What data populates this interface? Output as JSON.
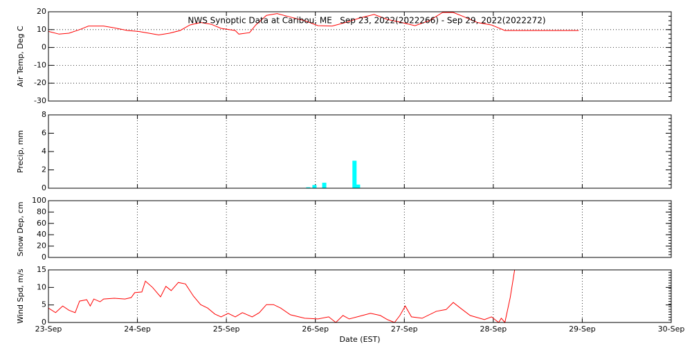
{
  "chart_data": [
    {
      "type": "line",
      "title": "NWS Synoptic Data at Caribou, ME   Sep 23, 2022(2022266) - Sep 29, 2022(2022272)",
      "ylabel": "Air Temp, Deg C",
      "color": "#ff0000",
      "grid": "both",
      "x": [
        0,
        0.12,
        0.23,
        0.35,
        0.45,
        0.62,
        0.74,
        0.89,
        1.01,
        1.13,
        1.24,
        1.36,
        1.48,
        1.59,
        1.71,
        1.83,
        1.94,
        2.1,
        2.14,
        2.26,
        2.33,
        2.45,
        2.57,
        2.72,
        2.88,
        3.03,
        3.19,
        3.34,
        3.5,
        3.66,
        3.81,
        3.97,
        4.12,
        4.28,
        4.43,
        4.55,
        4.67,
        4.82,
        4.98,
        5.13,
        5.96
      ],
      "values": [
        9,
        7.5,
        8,
        10,
        12,
        12,
        11,
        9.5,
        9,
        8,
        7,
        8,
        9.5,
        12.6,
        14,
        13,
        10.7,
        9.5,
        7.5,
        8.3,
        12.6,
        18,
        19,
        17,
        15,
        12.2,
        12,
        14,
        16.5,
        18.5,
        15.7,
        14,
        12.2,
        15,
        19.6,
        19.6,
        17.2,
        14,
        12.6,
        9.5,
        9.5
      ],
      "xlim": [
        0,
        7
      ],
      "xticks": [
        0,
        1,
        2,
        3,
        4,
        5,
        6,
        7
      ],
      "ylim": [
        -30,
        20
      ],
      "yticks": [
        -30,
        -20,
        -10,
        0,
        10,
        20
      ]
    },
    {
      "type": "bar",
      "ylabel": "Precip, mm",
      "color": "#00ffff",
      "grid": "x",
      "x": [
        2.92,
        2.99,
        3.1,
        3.44,
        3.48
      ],
      "values": [
        0.1,
        0.35,
        0.6,
        3.0,
        0.4
      ],
      "xlim": [
        0,
        7
      ],
      "xticks": [
        0,
        1,
        2,
        3,
        4,
        5,
        6,
        7
      ],
      "ylim": [
        0,
        8
      ],
      "yticks": [
        0,
        2,
        4,
        6,
        8
      ]
    },
    {
      "type": "line",
      "ylabel": "Snow Dep, cm",
      "grid": "x",
      "xlim": [
        0,
        7
      ],
      "xticks": [
        0,
        1,
        2,
        3,
        4,
        5,
        6,
        7
      ],
      "ylim": [
        0,
        100
      ],
      "yticks": [
        0,
        20,
        40,
        60,
        80,
        100
      ]
    },
    {
      "type": "line",
      "ylabel": "Wind Spd, m/s",
      "xlabel": "Date (EST)",
      "color": "#ff0000",
      "grid": "x",
      "x": [
        0,
        0.08,
        0.16,
        0.23,
        0.3,
        0.35,
        0.43,
        0.47,
        0.51,
        0.58,
        0.62,
        0.74,
        0.86,
        0.93,
        0.97,
        1.05,
        1.09,
        1.17,
        1.26,
        1.32,
        1.38,
        1.46,
        1.54,
        1.63,
        1.71,
        1.79,
        1.87,
        1.94,
        2.02,
        2.1,
        2.18,
        2.29,
        2.37,
        2.45,
        2.53,
        2.61,
        2.72,
        2.88,
        3.03,
        3.15,
        3.23,
        3.31,
        3.38,
        3.5,
        3.62,
        3.73,
        3.81,
        3.89,
        3.95,
        4.01,
        4.08,
        4.2,
        4.36,
        4.47,
        4.55,
        4.63,
        4.74,
        4.9,
        4.98,
        5.06,
        5.09,
        5.13,
        5.19,
        5.24
      ],
      "values": [
        4.1,
        2.8,
        4.7,
        3.5,
        2.8,
        6.1,
        6.5,
        4.7,
        6.7,
        5.9,
        6.7,
        6.9,
        6.7,
        7.1,
        8.5,
        8.7,
        11.8,
        10,
        7.3,
        10.3,
        9.1,
        11.4,
        11,
        7.5,
        5.1,
        4.1,
        2.4,
        1.6,
        2.6,
        1.6,
        2.8,
        1.6,
        2.8,
        5.1,
        5.1,
        4.1,
        2.2,
        1.2,
        1.0,
        1.6,
        0,
        2.0,
        1.0,
        1.8,
        2.6,
        2.0,
        0.8,
        0,
        2.0,
        4.7,
        1.6,
        1.2,
        3.2,
        3.7,
        5.7,
        4.1,
        2.0,
        0.8,
        1.6,
        0,
        1.2,
        0,
        7.1,
        15
      ],
      "xlim": [
        0,
        7
      ],
      "xticks": [
        {
          "value": 0,
          "label": "23-Sep"
        },
        {
          "value": 1,
          "label": "24-Sep"
        },
        {
          "value": 2,
          "label": "25-Sep"
        },
        {
          "value": 3,
          "label": "26-Sep"
        },
        {
          "value": 4,
          "label": "27-Sep"
        },
        {
          "value": 5,
          "label": "28-Sep"
        },
        {
          "value": 6,
          "label": "29-Sep"
        },
        {
          "value": 7,
          "label": "30-Sep"
        }
      ],
      "ylim": [
        0,
        15
      ],
      "yticks": [
        0,
        5,
        10,
        15
      ]
    }
  ]
}
